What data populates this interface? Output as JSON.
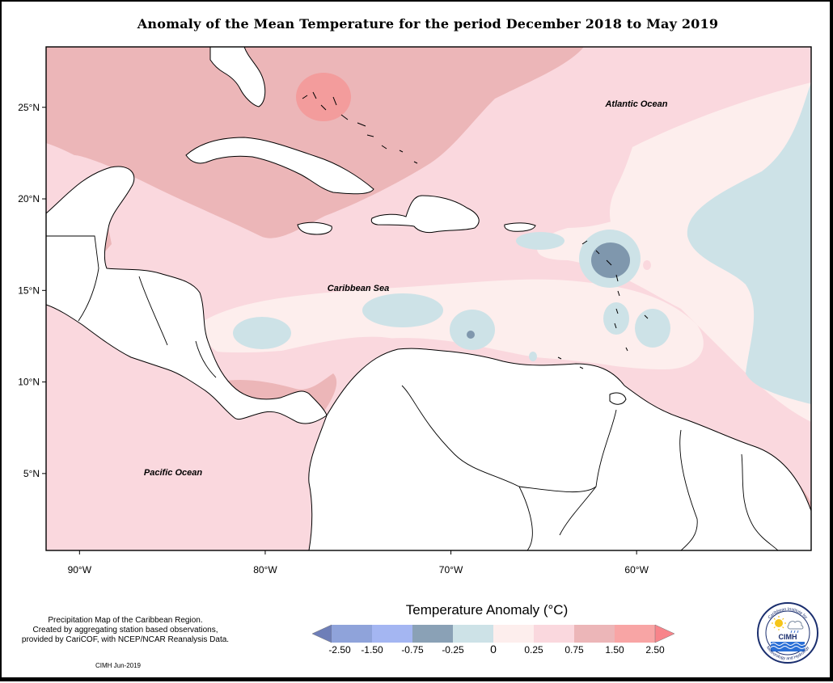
{
  "title": "Anomaly of the Mean Temperature for the period December 2018 to May 2019",
  "map": {
    "region": "Caribbean",
    "lon_range": [
      -91.8,
      -50.6
    ],
    "lat_range": [
      0.8,
      28.3
    ],
    "lat_ticks": [
      {
        "value": 25,
        "label": "25°N"
      },
      {
        "value": 20,
        "label": "20°N"
      },
      {
        "value": 15,
        "label": "15°N"
      },
      {
        "value": 10,
        "label": "10°N"
      },
      {
        "value": 5,
        "label": "5°N"
      }
    ],
    "lon_ticks": [
      {
        "value": -90,
        "label": "90°W"
      },
      {
        "value": -80,
        "label": "80°W"
      },
      {
        "value": -70,
        "label": "70°W"
      },
      {
        "value": -60,
        "label": "60°W"
      }
    ],
    "labels": {
      "atlantic": "Atlantic Ocean",
      "caribbean": "Caribbean Sea",
      "pacific": "Pacific Ocean"
    },
    "colors": {
      "anomaly_1_5_to_2_5": "#f39c9c",
      "anomaly_0_75_to_1_5": "#ecb6b8",
      "anomaly_0_25_to_0_75": "#fad8de",
      "anomaly_0_to_0_25": "#fdeeed",
      "anomaly_neg_0_25_to_0": "#cde2e7",
      "anomaly_neg_0_75_to_neg_0_25": "#7f97ad",
      "land": "#ffffff",
      "coastline": "#000000"
    }
  },
  "legend": {
    "title": "Temperature Anomaly (°C)",
    "bins": [
      {
        "color": "#6e7eb8"
      },
      {
        "color": "#8fa3da"
      },
      {
        "color": "#a4b6f2"
      },
      {
        "color": "#8aa1b6"
      },
      {
        "color": "#cde2e7"
      },
      {
        "color": "#fdeeed"
      },
      {
        "color": "#fad8de"
      },
      {
        "color": "#ecb6b8"
      },
      {
        "color": "#f8a5a5"
      },
      {
        "color": "#f8848a"
      }
    ],
    "tick_labels": [
      "-2.50",
      "-1.50",
      "-0.75",
      "-0.25",
      "0",
      "0.25",
      "0.75",
      "1.50",
      "2.50"
    ]
  },
  "notes": {
    "line1": "Precipitation Map of the Caribbean Region.",
    "line2": "Created by aggregating station based observations,",
    "line3": "provided by CariCOF, with NCEP/NCAR Reanalysis Data.",
    "credit": "CIMH Jun-2019"
  },
  "logo": {
    "abbr": "CIMH",
    "ring_text_top": "Caribbean Institute for",
    "ring_text_bottom": "Meteorology and Hydrology",
    "icon": "sun-cloud-rain-logo"
  }
}
